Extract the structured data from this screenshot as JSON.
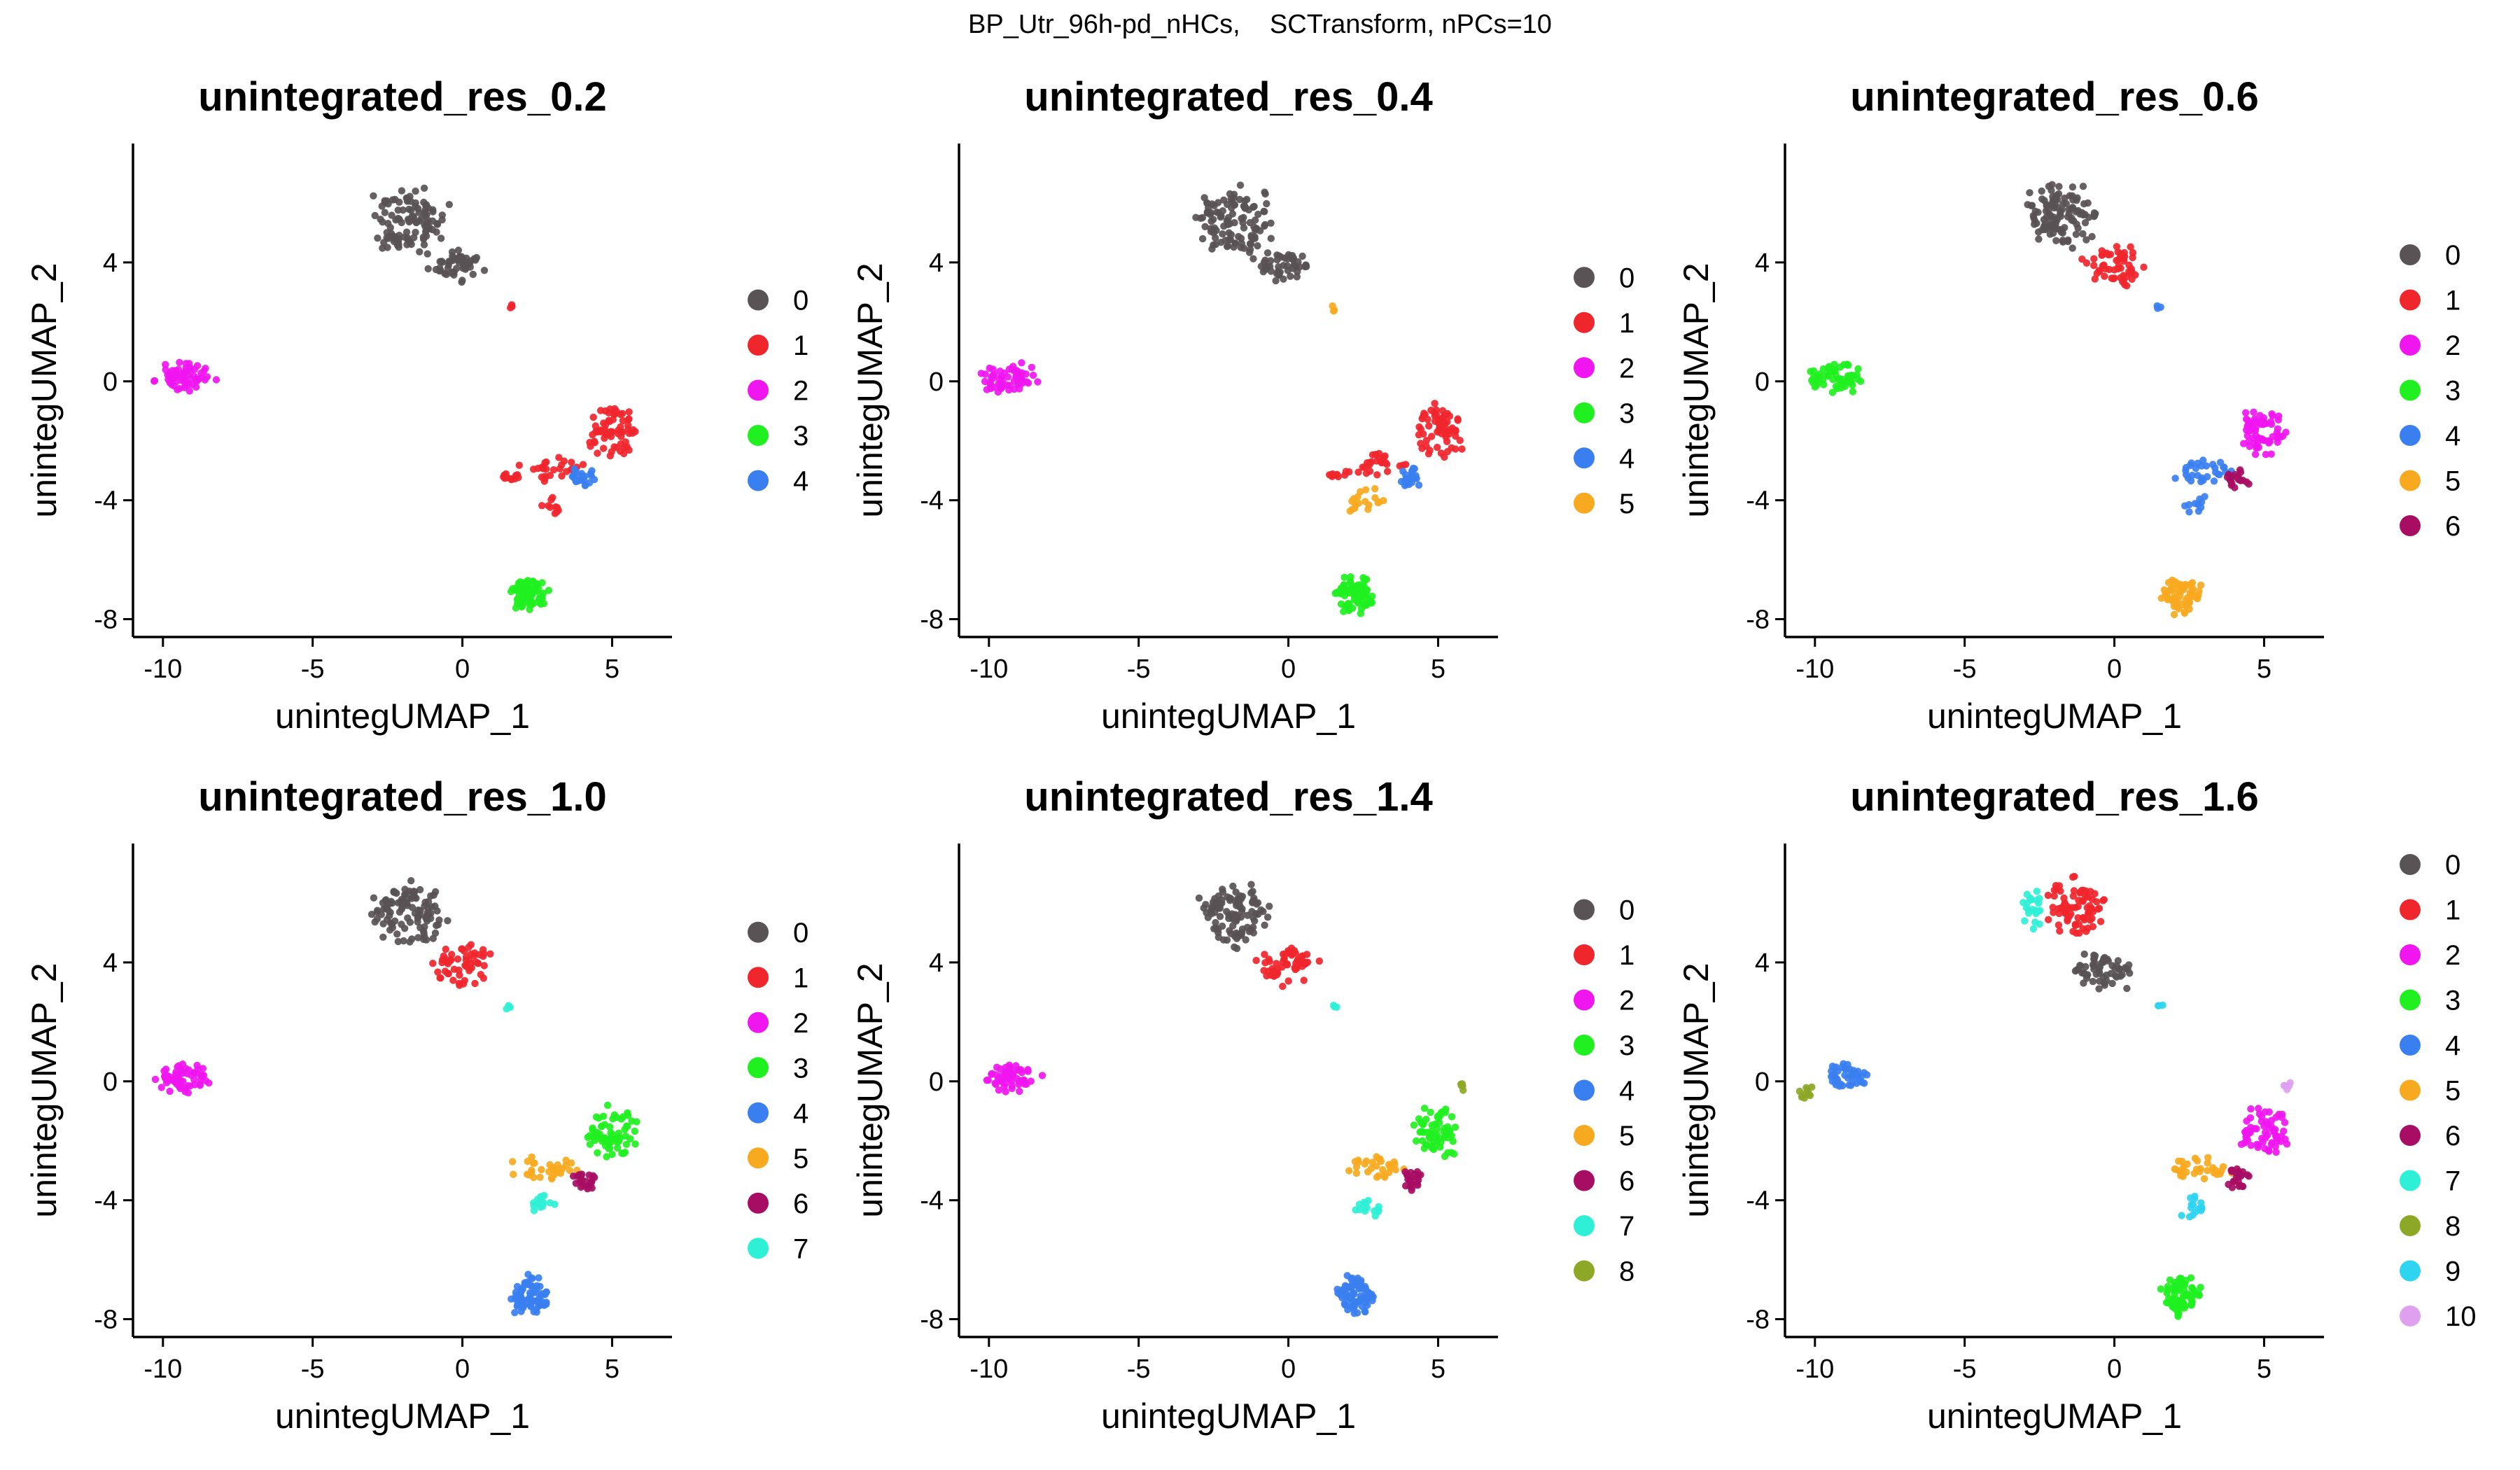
{
  "figure_title": "BP_Utr_96h-pd_nHCs,    SCTransform, nPCs=10",
  "chart_data": [
    {
      "type": "scatter",
      "title": "unintegrated_res_0.2",
      "xlabel": "unintegUMAP_1",
      "ylabel": "unintegUMAP_2",
      "xlim": [
        -11,
        7
      ],
      "ylim": [
        -8.6,
        8
      ],
      "xticks": [
        -10,
        -5,
        0,
        5
      ],
      "yticks": [
        -8,
        -4,
        0,
        4
      ],
      "grid": false,
      "legend": "right",
      "series": [
        {
          "name": "0",
          "color": "#595355",
          "clusters": [
            {
              "cx": -1.8,
              "cy": 5.4,
              "rx": 1.5,
              "ry": 1.4,
              "n": 110
            },
            {
              "cx": -0.2,
              "cy": 3.9,
              "rx": 1.1,
              "ry": 0.6,
              "n": 50
            }
          ]
        },
        {
          "name": "1",
          "color": "#F0262D",
          "clusters": [
            {
              "cx": 5.0,
              "cy": -1.7,
              "rx": 1.0,
              "ry": 1.0,
              "n": 65
            },
            {
              "cx": 3.0,
              "cy": -3.0,
              "rx": 1.3,
              "ry": 0.55,
              "n": 30
            },
            {
              "cx": 1.6,
              "cy": -3.2,
              "rx": 0.5,
              "ry": 0.15,
              "n": 10
            },
            {
              "cx": 3.0,
              "cy": -4.2,
              "rx": 0.5,
              "ry": 0.5,
              "n": 10
            },
            {
              "cx": 1.6,
              "cy": 2.5,
              "rx": 0.15,
              "ry": 0.15,
              "n": 3
            }
          ]
        },
        {
          "name": "2",
          "color": "#F016F0",
          "clusters": [
            {
              "cx": -9.3,
              "cy": 0.1,
              "rx": 1.1,
              "ry": 0.6,
              "n": 60
            }
          ]
        },
        {
          "name": "3",
          "color": "#20F020",
          "clusters": [
            {
              "cx": 2.2,
              "cy": -7.2,
              "rx": 0.8,
              "ry": 0.75,
              "n": 70
            }
          ]
        },
        {
          "name": "4",
          "color": "#3A7FF0",
          "clusters": [
            {
              "cx": 4.0,
              "cy": -3.2,
              "rx": 0.5,
              "ry": 0.5,
              "n": 22
            }
          ]
        }
      ]
    },
    {
      "type": "scatter",
      "title": "unintegrated_res_0.4",
      "xlabel": "unintegUMAP_1",
      "ylabel": "unintegUMAP_2",
      "xlim": [
        -11,
        7
      ],
      "ylim": [
        -8.6,
        8
      ],
      "xticks": [
        -10,
        -5,
        0,
        5
      ],
      "yticks": [
        -8,
        -4,
        0,
        4
      ],
      "grid": false,
      "legend": "right",
      "series": [
        {
          "name": "0",
          "color": "#595355",
          "clusters": [
            {
              "cx": -1.8,
              "cy": 5.4,
              "rx": 1.5,
              "ry": 1.4,
              "n": 110
            },
            {
              "cx": -0.2,
              "cy": 3.9,
              "rx": 1.1,
              "ry": 0.6,
              "n": 50
            }
          ]
        },
        {
          "name": "1",
          "color": "#F0262D",
          "clusters": [
            {
              "cx": 5.0,
              "cy": -1.7,
              "rx": 1.0,
              "ry": 1.0,
              "n": 65
            },
            {
              "cx": 3.0,
              "cy": -2.8,
              "rx": 1.2,
              "ry": 0.5,
              "n": 25
            },
            {
              "cx": 1.6,
              "cy": -3.1,
              "rx": 0.5,
              "ry": 0.15,
              "n": 10
            }
          ]
        },
        {
          "name": "2",
          "color": "#F016F0",
          "clusters": [
            {
              "cx": -9.3,
              "cy": 0.1,
              "rx": 1.1,
              "ry": 0.6,
              "n": 60
            }
          ]
        },
        {
          "name": "3",
          "color": "#20F020",
          "clusters": [
            {
              "cx": 2.2,
              "cy": -7.2,
              "rx": 0.8,
              "ry": 0.75,
              "n": 70
            }
          ]
        },
        {
          "name": "4",
          "color": "#3A7FF0",
          "clusters": [
            {
              "cx": 4.0,
              "cy": -3.2,
              "rx": 0.5,
              "ry": 0.5,
              "n": 22
            }
          ]
        },
        {
          "name": "5",
          "color": "#F7A920",
          "clusters": [
            {
              "cx": 2.6,
              "cy": -4.0,
              "rx": 0.8,
              "ry": 0.6,
              "n": 18
            },
            {
              "cx": 1.5,
              "cy": 2.4,
              "rx": 0.15,
              "ry": 0.15,
              "n": 3
            }
          ]
        }
      ]
    },
    {
      "type": "scatter",
      "title": "unintegrated_res_0.6",
      "xlabel": "unintegUMAP_1",
      "ylabel": "unintegUMAP_2",
      "xlim": [
        -11,
        7
      ],
      "ylim": [
        -8.6,
        8
      ],
      "xticks": [
        -10,
        -5,
        0,
        5
      ],
      "yticks": [
        -8,
        -4,
        0,
        4
      ],
      "grid": false,
      "legend": "right",
      "series": [
        {
          "name": "0",
          "color": "#595355",
          "clusters": [
            {
              "cx": -1.8,
              "cy": 5.6,
              "rx": 1.4,
              "ry": 1.2,
              "n": 110
            }
          ]
        },
        {
          "name": "1",
          "color": "#F0262D",
          "clusters": [
            {
              "cx": 0.0,
              "cy": 3.9,
              "rx": 1.2,
              "ry": 0.8,
              "n": 55
            }
          ]
        },
        {
          "name": "2",
          "color": "#F016F0",
          "clusters": [
            {
              "cx": 5.0,
              "cy": -1.7,
              "rx": 1.0,
              "ry": 1.0,
              "n": 65
            }
          ]
        },
        {
          "name": "3",
          "color": "#20F020",
          "clusters": [
            {
              "cx": -9.3,
              "cy": 0.1,
              "rx": 1.1,
              "ry": 0.6,
              "n": 60
            }
          ]
        },
        {
          "name": "4",
          "color": "#3A7FF0",
          "clusters": [
            {
              "cx": 2.9,
              "cy": -3.0,
              "rx": 1.3,
              "ry": 0.5,
              "n": 30
            },
            {
              "cx": 2.7,
              "cy": -4.1,
              "rx": 0.5,
              "ry": 0.5,
              "n": 10
            },
            {
              "cx": 1.5,
              "cy": 2.5,
              "rx": 0.15,
              "ry": 0.15,
              "n": 3
            }
          ]
        },
        {
          "name": "5",
          "color": "#F7A920",
          "clusters": [
            {
              "cx": 2.2,
              "cy": -7.2,
              "rx": 0.8,
              "ry": 0.75,
              "n": 70
            }
          ]
        },
        {
          "name": "6",
          "color": "#A80D64",
          "clusters": [
            {
              "cx": 4.1,
              "cy": -3.3,
              "rx": 0.45,
              "ry": 0.45,
              "n": 22
            }
          ]
        }
      ]
    },
    {
      "type": "scatter",
      "title": "unintegrated_res_1.0",
      "xlabel": "unintegUMAP_1",
      "ylabel": "unintegUMAP_2",
      "xlim": [
        -11,
        7
      ],
      "ylim": [
        -8.6,
        8
      ],
      "xticks": [
        -10,
        -5,
        0,
        5
      ],
      "yticks": [
        -8,
        -4,
        0,
        4
      ],
      "grid": false,
      "legend": "right",
      "series": [
        {
          "name": "0",
          "color": "#595355",
          "clusters": [
            {
              "cx": -1.8,
              "cy": 5.6,
              "rx": 1.4,
              "ry": 1.2,
              "n": 110
            }
          ]
        },
        {
          "name": "1",
          "color": "#F0262D",
          "clusters": [
            {
              "cx": 0.0,
              "cy": 3.9,
              "rx": 1.2,
              "ry": 0.8,
              "n": 55
            }
          ]
        },
        {
          "name": "2",
          "color": "#F016F0",
          "clusters": [
            {
              "cx": -9.3,
              "cy": 0.1,
              "rx": 1.1,
              "ry": 0.6,
              "n": 60
            }
          ]
        },
        {
          "name": "3",
          "color": "#20F020",
          "clusters": [
            {
              "cx": 5.0,
              "cy": -1.7,
              "rx": 1.0,
              "ry": 1.0,
              "n": 65
            }
          ]
        },
        {
          "name": "4",
          "color": "#3A7FF0",
          "clusters": [
            {
              "cx": 2.2,
              "cy": -7.2,
              "rx": 0.8,
              "ry": 0.75,
              "n": 70
            }
          ]
        },
        {
          "name": "5",
          "color": "#F7A920",
          "clusters": [
            {
              "cx": 2.8,
              "cy": -2.9,
              "rx": 1.3,
              "ry": 0.5,
              "n": 30
            }
          ]
        },
        {
          "name": "6",
          "color": "#A80D64",
          "clusters": [
            {
              "cx": 4.1,
              "cy": -3.3,
              "rx": 0.45,
              "ry": 0.45,
              "n": 22
            }
          ]
        },
        {
          "name": "7",
          "color": "#2EF0D6",
          "clusters": [
            {
              "cx": 2.7,
              "cy": -4.2,
              "rx": 0.6,
              "ry": 0.5,
              "n": 15
            },
            {
              "cx": 1.5,
              "cy": 2.5,
              "rx": 0.15,
              "ry": 0.15,
              "n": 3
            }
          ]
        }
      ]
    },
    {
      "type": "scatter",
      "title": "unintegrated_res_1.4",
      "xlabel": "unintegUMAP_1",
      "ylabel": "unintegUMAP_2",
      "xlim": [
        -11,
        7
      ],
      "ylim": [
        -8.6,
        8
      ],
      "xticks": [
        -10,
        -5,
        0,
        5
      ],
      "yticks": [
        -8,
        -4,
        0,
        4
      ],
      "grid": false,
      "legend": "right",
      "series": [
        {
          "name": "0",
          "color": "#595355",
          "clusters": [
            {
              "cx": -1.8,
              "cy": 5.6,
              "rx": 1.4,
              "ry": 1.2,
              "n": 110
            }
          ]
        },
        {
          "name": "1",
          "color": "#F0262D",
          "clusters": [
            {
              "cx": 0.0,
              "cy": 3.9,
              "rx": 1.2,
              "ry": 0.8,
              "n": 55
            }
          ]
        },
        {
          "name": "2",
          "color": "#F016F0",
          "clusters": [
            {
              "cx": -9.3,
              "cy": 0.1,
              "rx": 1.1,
              "ry": 0.6,
              "n": 60
            }
          ]
        },
        {
          "name": "3",
          "color": "#20F020",
          "clusters": [
            {
              "cx": 5.0,
              "cy": -1.7,
              "rx": 1.0,
              "ry": 1.0,
              "n": 60
            }
          ]
        },
        {
          "name": "4",
          "color": "#3A7FF0",
          "clusters": [
            {
              "cx": 2.2,
              "cy": -7.2,
              "rx": 0.8,
              "ry": 0.75,
              "n": 70
            }
          ]
        },
        {
          "name": "5",
          "color": "#F7A920",
          "clusters": [
            {
              "cx": 2.8,
              "cy": -2.9,
              "rx": 1.3,
              "ry": 0.5,
              "n": 30
            }
          ]
        },
        {
          "name": "6",
          "color": "#A80D64",
          "clusters": [
            {
              "cx": 4.1,
              "cy": -3.3,
              "rx": 0.45,
              "ry": 0.45,
              "n": 22
            }
          ]
        },
        {
          "name": "7",
          "color": "#2EF0D6",
          "clusters": [
            {
              "cx": 2.7,
              "cy": -4.2,
              "rx": 0.6,
              "ry": 0.5,
              "n": 15
            },
            {
              "cx": 1.5,
              "cy": 2.5,
              "rx": 0.15,
              "ry": 0.15,
              "n": 3
            }
          ]
        },
        {
          "name": "8",
          "color": "#8DA827",
          "clusters": [
            {
              "cx": 5.8,
              "cy": -0.2,
              "rx": 0.2,
              "ry": 0.2,
              "n": 5
            }
          ]
        }
      ]
    },
    {
      "type": "scatter",
      "title": "unintegrated_res_1.6",
      "xlabel": "unintegUMAP_1",
      "ylabel": "unintegUMAP_2",
      "xlim": [
        -11,
        7
      ],
      "ylim": [
        -8.6,
        8
      ],
      "xticks": [
        -10,
        -5,
        0,
        5
      ],
      "yticks": [
        -8,
        -4,
        0,
        4
      ],
      "grid": false,
      "legend": "right",
      "series": [
        {
          "name": "0",
          "color": "#595355",
          "clusters": [
            {
              "cx": -0.4,
              "cy": 3.7,
              "rx": 1.4,
              "ry": 0.8,
              "n": 60
            }
          ]
        },
        {
          "name": "1",
          "color": "#F0262D",
          "clusters": [
            {
              "cx": -1.2,
              "cy": 5.8,
              "rx": 1.2,
              "ry": 1.2,
              "n": 80
            }
          ]
        },
        {
          "name": "2",
          "color": "#F016F0",
          "clusters": [
            {
              "cx": 5.0,
              "cy": -1.7,
              "rx": 1.0,
              "ry": 1.0,
              "n": 62
            }
          ]
        },
        {
          "name": "3",
          "color": "#20F020",
          "clusters": [
            {
              "cx": 2.2,
              "cy": -7.2,
              "rx": 0.8,
              "ry": 0.75,
              "n": 70
            }
          ]
        },
        {
          "name": "4",
          "color": "#3A7FF0",
          "clusters": [
            {
              "cx": -9.0,
              "cy": 0.2,
              "rx": 0.8,
              "ry": 0.5,
              "n": 45
            }
          ]
        },
        {
          "name": "5",
          "color": "#F7A920",
          "clusters": [
            {
              "cx": 2.8,
              "cy": -2.9,
              "rx": 1.3,
              "ry": 0.5,
              "n": 30
            }
          ]
        },
        {
          "name": "6",
          "color": "#A80D64",
          "clusters": [
            {
              "cx": 4.1,
              "cy": -3.3,
              "rx": 0.45,
              "ry": 0.45,
              "n": 22
            }
          ]
        },
        {
          "name": "7",
          "color": "#2EF0D6",
          "clusters": [
            {
              "cx": -2.7,
              "cy": 5.8,
              "rx": 0.4,
              "ry": 0.9,
              "n": 22
            }
          ]
        },
        {
          "name": "8",
          "color": "#8DA827",
          "clusters": [
            {
              "cx": -10.3,
              "cy": -0.4,
              "rx": 0.35,
              "ry": 0.3,
              "n": 12
            }
          ]
        },
        {
          "name": "9",
          "color": "#2ED4F0",
          "clusters": [
            {
              "cx": 2.6,
              "cy": -4.2,
              "rx": 0.6,
              "ry": 0.5,
              "n": 15
            },
            {
              "cx": 1.5,
              "cy": 2.5,
              "rx": 0.15,
              "ry": 0.15,
              "n": 3
            }
          ]
        },
        {
          "name": "10",
          "color": "#E0A0F0",
          "clusters": [
            {
              "cx": 5.8,
              "cy": -0.1,
              "rx": 0.2,
              "ry": 0.2,
              "n": 5
            }
          ]
        }
      ]
    }
  ]
}
